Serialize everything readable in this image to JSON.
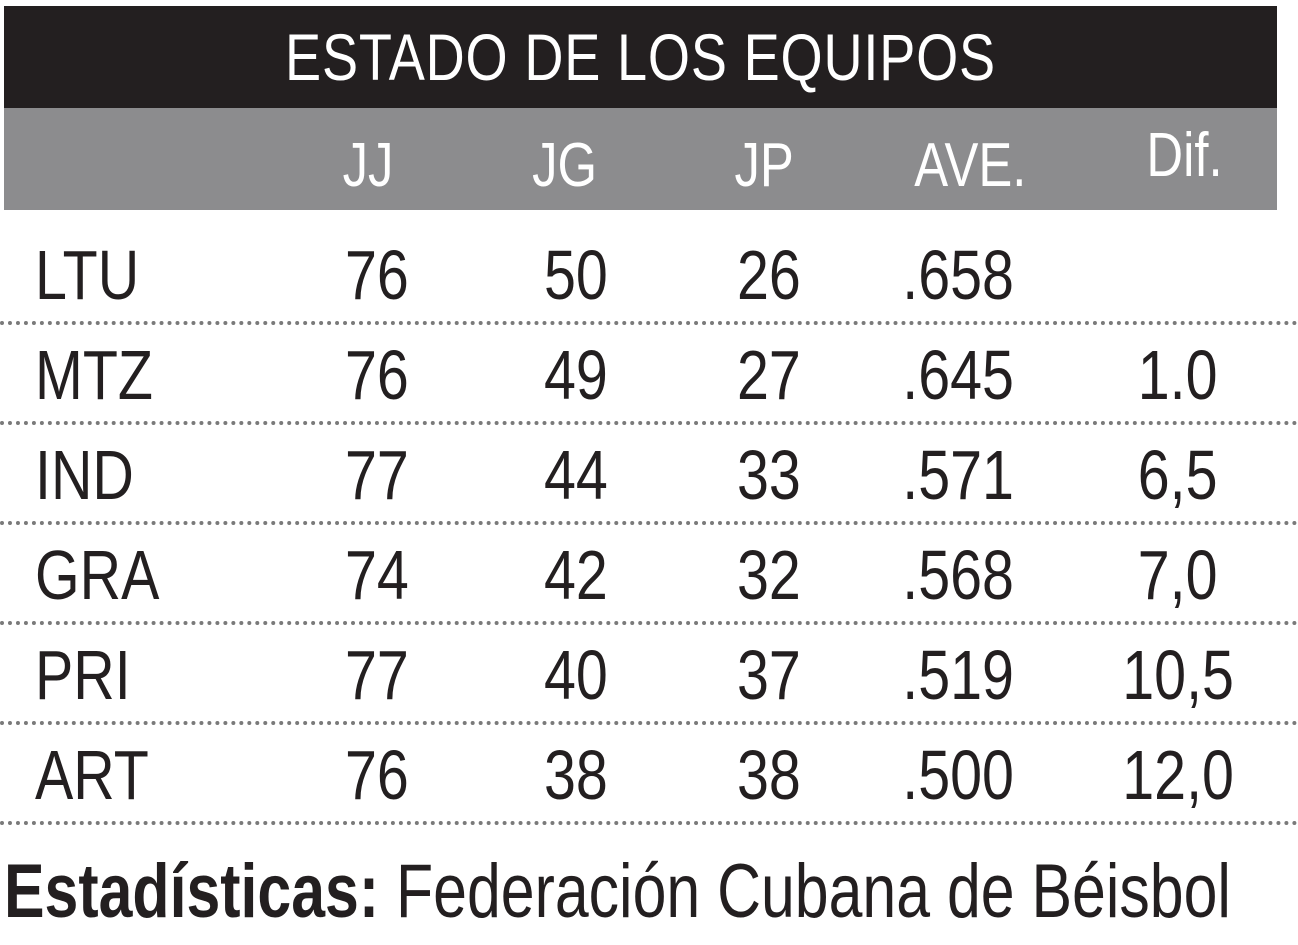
{
  "chart_data": {
    "type": "table",
    "title": "ESTADO DE LOS EQUIPOS",
    "columns": [
      "JJ",
      "JG",
      "JP",
      "AVE.",
      "Dif."
    ],
    "rows": [
      {
        "team": "LTU",
        "jj": "76",
        "jg": "50",
        "jp": "26",
        "ave": ".658",
        "dif": ""
      },
      {
        "team": "MTZ",
        "jj": "76",
        "jg": "49",
        "jp": "27",
        "ave": ".645",
        "dif": "1.0"
      },
      {
        "team": "IND",
        "jj": "77",
        "jg": "44",
        "jp": "33",
        "ave": ".571",
        "dif": "6,5"
      },
      {
        "team": "GRA",
        "jj": "74",
        "jg": "42",
        "jp": "32",
        "ave": ".568",
        "dif": "7,0"
      },
      {
        "team": "PRI",
        "jj": "77",
        "jg": "40",
        "jp": "37",
        "ave": ".519",
        "dif": "10,5"
      },
      {
        "team": "ART",
        "jj": "76",
        "jg": "38",
        "jp": "38",
        "ave": ".500",
        "dif": "12,0"
      }
    ]
  },
  "footer": {
    "label": "Estadísticas:",
    "source": "Federación Cubana de Béisbol"
  },
  "colors": {
    "title_bg": "#231f20",
    "header_bg": "#8c8c8e",
    "text": "#231f20",
    "divider": "#7a7a7a"
  }
}
